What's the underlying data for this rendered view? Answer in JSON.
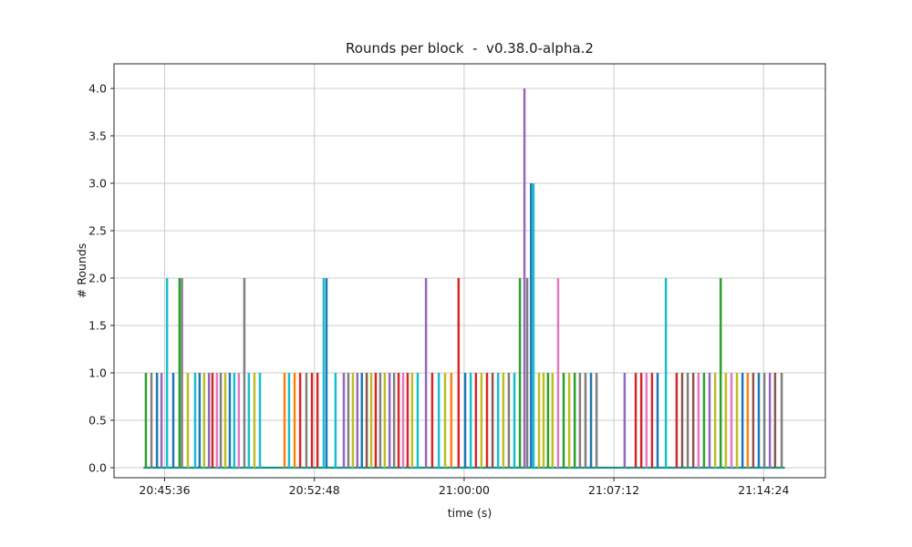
{
  "chart_data": {
    "type": "line",
    "title": "Rounds per block  -  v0.38.0-alpha.2",
    "xlabel": "time (s)",
    "ylabel": "# Rounds",
    "ylim": [
      0.0,
      4.0
    ],
    "yticks": [
      0.0,
      0.5,
      1.0,
      1.5,
      2.0,
      2.5,
      3.0,
      3.5,
      4.0
    ],
    "x_axis_start_time": "20:43:10",
    "x_total_seconds": 2052,
    "xticks": [
      {
        "offset": 146,
        "label": "20:45:36"
      },
      {
        "offset": 578,
        "label": "20:52:48"
      },
      {
        "offset": 1010,
        "label": "21:00:00"
      },
      {
        "offset": 1442,
        "label": "21:07:12"
      },
      {
        "offset": 1874,
        "label": "21:14:24"
      }
    ],
    "grid": true,
    "legend": "none",
    "palette": [
      "#1f77b4",
      "#ff7f0e",
      "#2ca02c",
      "#d62728",
      "#9467bd",
      "#8c564b",
      "#e377c2",
      "#7f7f7f",
      "#bcbd22",
      "#17becf"
    ],
    "baseline_color": "#1f8f85",
    "baseline_span_seconds": [
      85,
      1935
    ],
    "spikes_format": [
      "offset_seconds_from_start",
      "rounds",
      "palette_color_index"
    ],
    "spikes": [
      [
        92,
        1,
        2
      ],
      [
        108,
        1,
        7
      ],
      [
        124,
        1,
        0
      ],
      [
        137,
        1,
        4
      ],
      [
        153,
        2,
        9
      ],
      [
        171,
        1,
        0
      ],
      [
        189,
        2,
        2
      ],
      [
        196,
        2,
        7
      ],
      [
        213,
        1,
        8
      ],
      [
        234,
        1,
        9
      ],
      [
        247,
        1,
        0
      ],
      [
        260,
        1,
        8
      ],
      [
        274,
        1,
        4
      ],
      [
        284,
        1,
        3
      ],
      [
        297,
        1,
        6
      ],
      [
        308,
        1,
        7
      ],
      [
        321,
        1,
        8
      ],
      [
        334,
        1,
        0
      ],
      [
        347,
        1,
        9
      ],
      [
        360,
        1,
        6
      ],
      [
        376,
        2,
        7
      ],
      [
        389,
        1,
        9
      ],
      [
        405,
        1,
        8
      ],
      [
        421,
        1,
        9
      ],
      [
        492,
        1,
        1
      ],
      [
        505,
        1,
        9
      ],
      [
        521,
        1,
        1
      ],
      [
        537,
        1,
        3
      ],
      [
        555,
        1,
        7
      ],
      [
        571,
        1,
        3
      ],
      [
        587,
        1,
        3
      ],
      [
        605,
        2,
        9
      ],
      [
        613,
        2,
        0
      ],
      [
        639,
        1,
        9
      ],
      [
        663,
        1,
        4
      ],
      [
        676,
        1,
        7
      ],
      [
        689,
        1,
        8
      ],
      [
        702,
        1,
        4
      ],
      [
        715,
        1,
        0
      ],
      [
        729,
        1,
        5
      ],
      [
        742,
        1,
        8
      ],
      [
        755,
        1,
        3
      ],
      [
        768,
        1,
        7
      ],
      [
        781,
        1,
        8
      ],
      [
        795,
        1,
        4
      ],
      [
        808,
        1,
        7
      ],
      [
        821,
        1,
        3
      ],
      [
        834,
        1,
        6
      ],
      [
        847,
        1,
        3
      ],
      [
        860,
        1,
        8
      ],
      [
        876,
        1,
        9
      ],
      [
        900,
        2,
        4
      ],
      [
        918,
        1,
        3
      ],
      [
        937,
        1,
        9
      ],
      [
        955,
        1,
        8
      ],
      [
        973,
        1,
        1
      ],
      [
        994,
        2,
        3
      ],
      [
        1013,
        1,
        0
      ],
      [
        1029,
        1,
        9
      ],
      [
        1044,
        1,
        3
      ],
      [
        1060,
        1,
        8
      ],
      [
        1076,
        1,
        3
      ],
      [
        1092,
        1,
        5
      ],
      [
        1108,
        1,
        9
      ],
      [
        1123,
        1,
        8
      ],
      [
        1139,
        1,
        7
      ],
      [
        1155,
        1,
        9
      ],
      [
        1171,
        2,
        2
      ],
      [
        1184,
        4,
        4
      ],
      [
        1192,
        2,
        7
      ],
      [
        1203,
        3,
        0
      ],
      [
        1210,
        3,
        9
      ],
      [
        1226,
        1,
        8
      ],
      [
        1239,
        1,
        8
      ],
      [
        1252,
        1,
        2
      ],
      [
        1265,
        1,
        8
      ],
      [
        1281,
        2,
        6
      ],
      [
        1297,
        1,
        2
      ],
      [
        1313,
        1,
        8
      ],
      [
        1329,
        1,
        2
      ],
      [
        1344,
        1,
        7
      ],
      [
        1360,
        1,
        7
      ],
      [
        1376,
        1,
        0
      ],
      [
        1392,
        1,
        7
      ],
      [
        1473,
        1,
        4
      ],
      [
        1505,
        1,
        3
      ],
      [
        1521,
        1,
        3
      ],
      [
        1536,
        1,
        6
      ],
      [
        1552,
        1,
        3
      ],
      [
        1568,
        1,
        0
      ],
      [
        1592,
        2,
        9
      ],
      [
        1623,
        1,
        3
      ],
      [
        1639,
        1,
        5
      ],
      [
        1655,
        1,
        7
      ],
      [
        1671,
        1,
        5
      ],
      [
        1686,
        1,
        6
      ],
      [
        1702,
        1,
        2
      ],
      [
        1718,
        1,
        4
      ],
      [
        1734,
        1,
        8
      ],
      [
        1750,
        2,
        2
      ],
      [
        1765,
        1,
        8
      ],
      [
        1781,
        1,
        6
      ],
      [
        1797,
        1,
        8
      ],
      [
        1813,
        1,
        0
      ],
      [
        1828,
        1,
        1
      ],
      [
        1844,
        1,
        5
      ],
      [
        1860,
        1,
        0
      ],
      [
        1876,
        1,
        7
      ],
      [
        1892,
        1,
        4
      ],
      [
        1907,
        1,
        5
      ],
      [
        1926,
        1,
        7
      ]
    ]
  }
}
